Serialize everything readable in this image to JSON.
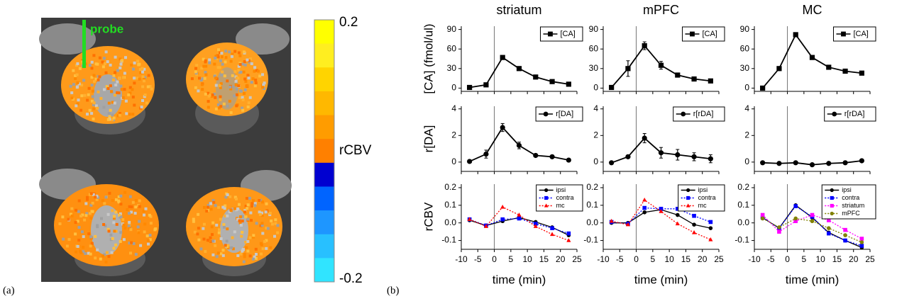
{
  "panel_a": {
    "label": "(a)",
    "probe_label": "probe",
    "colorbar": {
      "label": "rCBV",
      "ylim": [
        -0.2,
        0.2
      ],
      "ticks": [
        0.2,
        -0.2
      ],
      "colors": [
        "#ffff00",
        "#ffee20",
        "#ffd400",
        "#ffb800",
        "#ff9c00",
        "#ff8000",
        "#0000d0",
        "#0064ff",
        "#1e96ff",
        "#28c0ff",
        "#30e4ff"
      ]
    }
  },
  "panel_b_label": "(b)",
  "chart_data": [
    {
      "type": "line",
      "title": "striatum",
      "y_label": "[CA] (fmol/ul)",
      "show_xtick_labels": false,
      "x": [
        -7.5,
        -2.5,
        2.5,
        7.5,
        12.5,
        17.5,
        22.5
      ],
      "xlim": [
        -10,
        25
      ],
      "xticks": [
        -10,
        -5,
        0,
        5,
        10,
        15,
        20,
        25
      ],
      "ylim": [
        -5,
        95
      ],
      "yticks": [
        0,
        30,
        60,
        90
      ],
      "vlines": [
        0
      ],
      "legend": "upper right",
      "series": [
        {
          "name": "[CA]",
          "color": "#000000",
          "marker": "square",
          "dashed": false,
          "values": [
            1,
            5,
            47,
            30,
            17,
            10,
            6
          ],
          "errors": [
            null,
            null,
            2,
            3,
            null,
            null,
            null
          ]
        }
      ]
    },
    {
      "type": "line",
      "title": "mPFC",
      "show_xtick_labels": false,
      "x": [
        -7.5,
        -2.5,
        2.5,
        7.5,
        12.5,
        17.5,
        22.5
      ],
      "xlim": [
        -10,
        25
      ],
      "xticks": [
        -10,
        -5,
        0,
        5,
        10,
        15,
        20,
        25
      ],
      "ylim": [
        -5,
        95
      ],
      "yticks": [
        0,
        30,
        60,
        90
      ],
      "vlines": [
        0
      ],
      "legend": "upper right",
      "series": [
        {
          "name": "[CA]",
          "color": "#000000",
          "marker": "square",
          "dashed": false,
          "values": [
            1,
            30,
            65,
            35,
            20,
            14,
            11
          ],
          "errors": [
            null,
            12,
            6,
            6,
            3,
            null,
            null
          ]
        }
      ]
    },
    {
      "type": "line",
      "title": "MC",
      "show_xtick_labels": false,
      "x": [
        -7.5,
        -2.5,
        2.5,
        7.5,
        12.5,
        17.5,
        22.5
      ],
      "xlim": [
        -10,
        25
      ],
      "xticks": [
        -10,
        -5,
        0,
        5,
        10,
        15,
        20,
        25
      ],
      "ylim": [
        -5,
        95
      ],
      "yticks": [
        0,
        30,
        60,
        90
      ],
      "vlines": [
        0
      ],
      "legend": "upper right",
      "series": [
        {
          "name": "[CA]",
          "color": "#000000",
          "marker": "square",
          "dashed": false,
          "values": [
            0,
            30,
            82,
            47,
            32,
            26,
            23
          ],
          "errors": [
            null,
            null,
            2,
            null,
            null,
            null,
            null
          ]
        }
      ]
    },
    {
      "type": "line",
      "y_label": "r[DA]",
      "show_xtick_labels": false,
      "x": [
        -7.5,
        -2.5,
        2.5,
        7.5,
        12.5,
        17.5,
        22.5
      ],
      "xlim": [
        -10,
        25
      ],
      "xticks": [
        -10,
        -5,
        0,
        5,
        10,
        15,
        20,
        25
      ],
      "ylim": [
        -0.7,
        4.2
      ],
      "yticks": [
        0,
        2,
        4
      ],
      "vlines": [
        0
      ],
      "legend": "upper right",
      "series": [
        {
          "name": "r[DA]",
          "color": "#000000",
          "marker": "circle",
          "dashed": false,
          "values": [
            0.05,
            0.6,
            2.6,
            1.25,
            0.5,
            0.4,
            0.15
          ],
          "errors": [
            null,
            0.3,
            0.3,
            0.25,
            null,
            null,
            null
          ]
        }
      ]
    },
    {
      "type": "line",
      "show_xtick_labels": false,
      "x": [
        -7.5,
        -2.5,
        2.5,
        7.5,
        12.5,
        17.5,
        22.5
      ],
      "xlim": [
        -10,
        25
      ],
      "xticks": [
        -10,
        -5,
        0,
        5,
        10,
        15,
        20,
        25
      ],
      "ylim": [
        -0.7,
        4.2
      ],
      "yticks": [
        0,
        2,
        4
      ],
      "vlines": [
        0
      ],
      "legend": "upper right",
      "series": [
        {
          "name": "r[rDA]",
          "color": "#000000",
          "marker": "circle",
          "dashed": false,
          "values": [
            -0.05,
            0.4,
            1.8,
            0.7,
            0.55,
            0.4,
            0.25
          ],
          "errors": [
            null,
            null,
            0.35,
            0.4,
            0.4,
            0.3,
            0.3
          ]
        }
      ]
    },
    {
      "type": "line",
      "show_xtick_labels": false,
      "x": [
        -7.5,
        -2.5,
        2.5,
        7.5,
        12.5,
        17.5,
        22.5
      ],
      "xlim": [
        -10,
        25
      ],
      "xticks": [
        -10,
        -5,
        0,
        5,
        10,
        15,
        20,
        25
      ],
      "ylim": [
        -0.7,
        4.2
      ],
      "yticks": [
        0,
        2,
        4
      ],
      "vlines": [
        0
      ],
      "legend": "upper right",
      "series": [
        {
          "name": "r[rDA]",
          "color": "#000000",
          "marker": "circle",
          "dashed": false,
          "values": [
            -0.05,
            -0.1,
            -0.05,
            -0.2,
            -0.1,
            -0.05,
            0.1
          ]
        }
      ]
    },
    {
      "type": "line",
      "y_label": "rCBV",
      "x_label": "time (min)",
      "show_xtick_labels": true,
      "x": [
        -7.5,
        -2.5,
        2.5,
        7.5,
        12.5,
        17.5,
        22.5
      ],
      "xlim": [
        -10,
        25
      ],
      "xticks": [
        -10,
        -5,
        0,
        5,
        10,
        15,
        20,
        25
      ],
      "ylim": [
        -0.15,
        0.22
      ],
      "yticks": [
        -0.1,
        {
          "value": 0,
          "label": "0.0"
        },
        0.1,
        0.2
      ],
      "vlines": [
        0
      ],
      "legend": "upper right",
      "series": [
        {
          "name": "ipsi",
          "color": "#000000",
          "marker": "circle",
          "dashed": false,
          "values": [
            0.015,
            -0.015,
            0.01,
            0.03,
            0.005,
            -0.025,
            -0.07
          ]
        },
        {
          "name": "contra",
          "color": "#0000ff",
          "marker": "square",
          "dashed": true,
          "values": [
            0.02,
            -0.015,
            0.02,
            0.025,
            -0.005,
            -0.03,
            -0.06
          ]
        },
        {
          "name": "mc",
          "color": "#ff0000",
          "marker": "triangle",
          "dashed": true,
          "values": [
            0.02,
            -0.02,
            0.09,
            0.045,
            -0.02,
            -0.065,
            -0.1
          ]
        }
      ]
    },
    {
      "type": "line",
      "x_label": "time (min)",
      "show_xtick_labels": true,
      "x": [
        -7.5,
        -2.5,
        2.5,
        7.5,
        12.5,
        17.5,
        22.5
      ],
      "xlim": [
        -10,
        25
      ],
      "xticks": [
        -10,
        -5,
        0,
        5,
        10,
        15,
        20,
        25
      ],
      "ylim": [
        -0.15,
        0.22
      ],
      "yticks": [
        -0.1,
        {
          "value": 0,
          "label": "0.0"
        },
        0.1,
        0.2
      ],
      "vlines": [
        0
      ],
      "legend": "upper right",
      "series": [
        {
          "name": "ipsi",
          "color": "#000000",
          "marker": "circle",
          "dashed": false,
          "values": [
            0,
            0,
            0.06,
            0.075,
            0.045,
            -0.01,
            -0.03
          ]
        },
        {
          "name": "contra",
          "color": "#0000ff",
          "marker": "square",
          "dashed": true,
          "values": [
            0.005,
            -0.005,
            0.085,
            0.08,
            0.08,
            0.04,
            0.005
          ]
        },
        {
          "name": "mc",
          "color": "#ff0000",
          "marker": "triangle",
          "dashed": true,
          "values": [
            0.01,
            -0.01,
            0.13,
            0.065,
            -0.005,
            -0.055,
            -0.095
          ]
        }
      ]
    },
    {
      "type": "line",
      "x_label": "time (min)",
      "show_xtick_labels": true,
      "x": [
        -7.5,
        -2.5,
        2.5,
        7.5,
        12.5,
        17.5,
        22.5
      ],
      "xlim": [
        -10,
        25
      ],
      "xticks": [
        -10,
        -5,
        0,
        5,
        10,
        15,
        20,
        25
      ],
      "ylim": [
        -0.15,
        0.22
      ],
      "yticks": [
        -0.1,
        {
          "value": 0,
          "label": "0.0"
        },
        0.1,
        0.2
      ],
      "vlines": [
        0
      ],
      "legend": "upper right",
      "series": [
        {
          "name": "ipsi",
          "color": "#000000",
          "marker": "circle",
          "dashed": false,
          "values": [
            0.03,
            -0.03,
            0.1,
            0.03,
            -0.055,
            -0.1,
            -0.14
          ]
        },
        {
          "name": "contra",
          "color": "#0000ff",
          "marker": "square",
          "dashed": true,
          "values": [
            0.03,
            -0.03,
            0.095,
            0.035,
            -0.06,
            -0.1,
            -0.13
          ]
        },
        {
          "name": "striatum",
          "color": "#ff00ff",
          "marker": "square",
          "dashed": true,
          "values": [
            0.045,
            -0.05,
            0.01,
            0.045,
            0.015,
            -0.04,
            -0.09
          ]
        },
        {
          "name": "mPFC",
          "color": "#808000",
          "marker": "circle",
          "dashed": true,
          "values": [
            0.025,
            -0.025,
            0.025,
            0.01,
            -0.03,
            -0.07,
            -0.11
          ]
        }
      ]
    }
  ]
}
